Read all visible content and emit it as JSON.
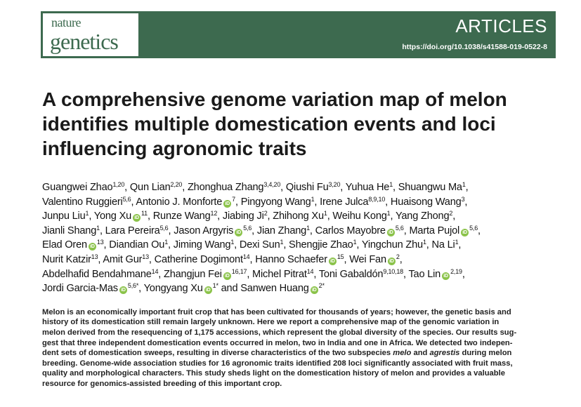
{
  "header": {
    "logo_line1": "nature",
    "logo_line2": "genetics",
    "section": "ARTICLES",
    "doi": "https://doi.org/10.1038/s41588-019-0522-8",
    "brand_color": "#3d6a4f"
  },
  "title": "A comprehensive genome variation map of melon identifies multiple domestication events and loci influencing agronomic traits",
  "authors": [
    {
      "name": "Guangwei Zhao",
      "sup": "1,20",
      "orcid": false,
      "sep": ", "
    },
    {
      "name": "Qun Lian",
      "sup": "2,20",
      "orcid": false,
      "sep": ", "
    },
    {
      "name": "Zhonghua Zhang",
      "sup": "3,4,20",
      "orcid": false,
      "sep": ", "
    },
    {
      "name": "Qiushi Fu",
      "sup": "3,20",
      "orcid": false,
      "sep": ", "
    },
    {
      "name": "Yuhua He",
      "sup": "1",
      "orcid": false,
      "sep": ", "
    },
    {
      "name": "Shuangwu Ma",
      "sup": "1",
      "orcid": false,
      "sep": ", "
    },
    {
      "name": "Valentino Ruggieri",
      "sup": "5,6",
      "orcid": false,
      "sep": ", "
    },
    {
      "name": "Antonio J. Monforte",
      "sup": "7",
      "orcid": true,
      "sep": ", "
    },
    {
      "name": "Pingyong Wang",
      "sup": "1",
      "orcid": false,
      "sep": ", "
    },
    {
      "name": "Irene Julca",
      "sup": "8,9,10",
      "orcid": false,
      "sep": ", "
    },
    {
      "name": "Huaisong Wang",
      "sup": "3",
      "orcid": false,
      "sep": ", "
    },
    {
      "name": "Junpu Liu",
      "sup": "1",
      "orcid": false,
      "sep": ", "
    },
    {
      "name": "Yong Xu",
      "sup": "11",
      "orcid": true,
      "sep": ", "
    },
    {
      "name": "Runze Wang",
      "sup": "12",
      "orcid": false,
      "sep": ", "
    },
    {
      "name": "Jiabing Ji",
      "sup": "2",
      "orcid": false,
      "sep": ", "
    },
    {
      "name": "Zhihong Xu",
      "sup": "1",
      "orcid": false,
      "sep": ", "
    },
    {
      "name": "Weihu Kong",
      "sup": "1",
      "orcid": false,
      "sep": ", "
    },
    {
      "name": "Yang Zhong",
      "sup": "2",
      "orcid": false,
      "sep": ", "
    },
    {
      "name": "Jianli Shang",
      "sup": "1",
      "orcid": false,
      "sep": ", "
    },
    {
      "name": "Lara Pereira",
      "sup": "5,6",
      "orcid": false,
      "sep": ", "
    },
    {
      "name": "Jason Argyris",
      "sup": "5,6",
      "orcid": true,
      "sep": ", "
    },
    {
      "name": "Jian Zhang",
      "sup": "1",
      "orcid": false,
      "sep": ", "
    },
    {
      "name": "Carlos Mayobre",
      "sup": "5,6",
      "orcid": true,
      "sep": ", "
    },
    {
      "name": "Marta Pujol",
      "sup": "5,6",
      "orcid": true,
      "sep": ", "
    },
    {
      "name": "Elad Oren",
      "sup": "13",
      "orcid": true,
      "sep": ", "
    },
    {
      "name": "Diandian Ou",
      "sup": "1",
      "orcid": false,
      "sep": ", "
    },
    {
      "name": "Jiming Wang",
      "sup": "1",
      "orcid": false,
      "sep": ", "
    },
    {
      "name": "Dexi Sun",
      "sup": "1",
      "orcid": false,
      "sep": ", "
    },
    {
      "name": "Shengjie Zhao",
      "sup": "1",
      "orcid": false,
      "sep": ", "
    },
    {
      "name": "Yingchun Zhu",
      "sup": "1",
      "orcid": false,
      "sep": ", "
    },
    {
      "name": "Na Li",
      "sup": "1",
      "orcid": false,
      "sep": ", "
    },
    {
      "name": "Nurit Katzir",
      "sup": "13",
      "orcid": false,
      "sep": ", "
    },
    {
      "name": "Amit Gur",
      "sup": "13",
      "orcid": false,
      "sep": ", "
    },
    {
      "name": "Catherine Dogimont",
      "sup": "14",
      "orcid": false,
      "sep": ", "
    },
    {
      "name": "Hanno Schaefer",
      "sup": "15",
      "orcid": true,
      "sep": ", "
    },
    {
      "name": "Wei Fan",
      "sup": "2",
      "orcid": true,
      "sep": ", "
    },
    {
      "name": "Abdelhafid Bendahmane",
      "sup": "14",
      "orcid": false,
      "sep": ", "
    },
    {
      "name": "Zhangjun Fei",
      "sup": "16,17",
      "orcid": true,
      "sep": ", "
    },
    {
      "name": "Michel Pitrat",
      "sup": "14",
      "orcid": false,
      "sep": ", "
    },
    {
      "name": "Toni Gabaldón",
      "sup": "9,10,18",
      "orcid": false,
      "sep": ", "
    },
    {
      "name": "Tao Lin",
      "sup": "2,19",
      "orcid": true,
      "sep": ", "
    },
    {
      "name": "Jordi Garcia-Mas",
      "sup": "5,6*",
      "orcid": true,
      "sep": ", "
    },
    {
      "name": "Yongyang Xu",
      "sup": "1*",
      "orcid": true,
      "sep": " and "
    },
    {
      "name": "Sanwen Huang",
      "sup": "2*",
      "orcid": true,
      "sep": ""
    }
  ],
  "author_line_breaks_after": [
    5,
    10,
    17,
    23,
    30,
    35,
    40
  ],
  "abstract": {
    "line1": "Melon is an economically important fruit crop that has been cultivated for thousands of years; however, the genetic basis and",
    "line2": "history of its domestication still remain largely unknown. Here we report a comprehensive map of the genomic variation in",
    "line3": "melon derived from the resequencing of 1,175 accessions, which represent the global diversity of the species. Our results sug-",
    "line4": "gest that three independent domestication events occurred in melon, two in India and one in Africa. We detected two indepen-",
    "line5a": "dent sets of domestication sweeps, resulting in diverse characteristics of the two subspecies ",
    "line5b": "melo",
    "line5c": " and ",
    "line5d": "agrestis",
    "line5e": " during melon",
    "line6": "breeding. Genome-wide association studies for 16 agronomic traits identified 208 loci significantly associated with fruit mass,",
    "line7": "quality and morphological characters. This study sheds light on the domestication history of melon and provides a valuable",
    "line8": "resource for genomics-assisted breeding of this important crop."
  },
  "orcid_color": "#8bc34a",
  "orcid_glyph": "iD"
}
